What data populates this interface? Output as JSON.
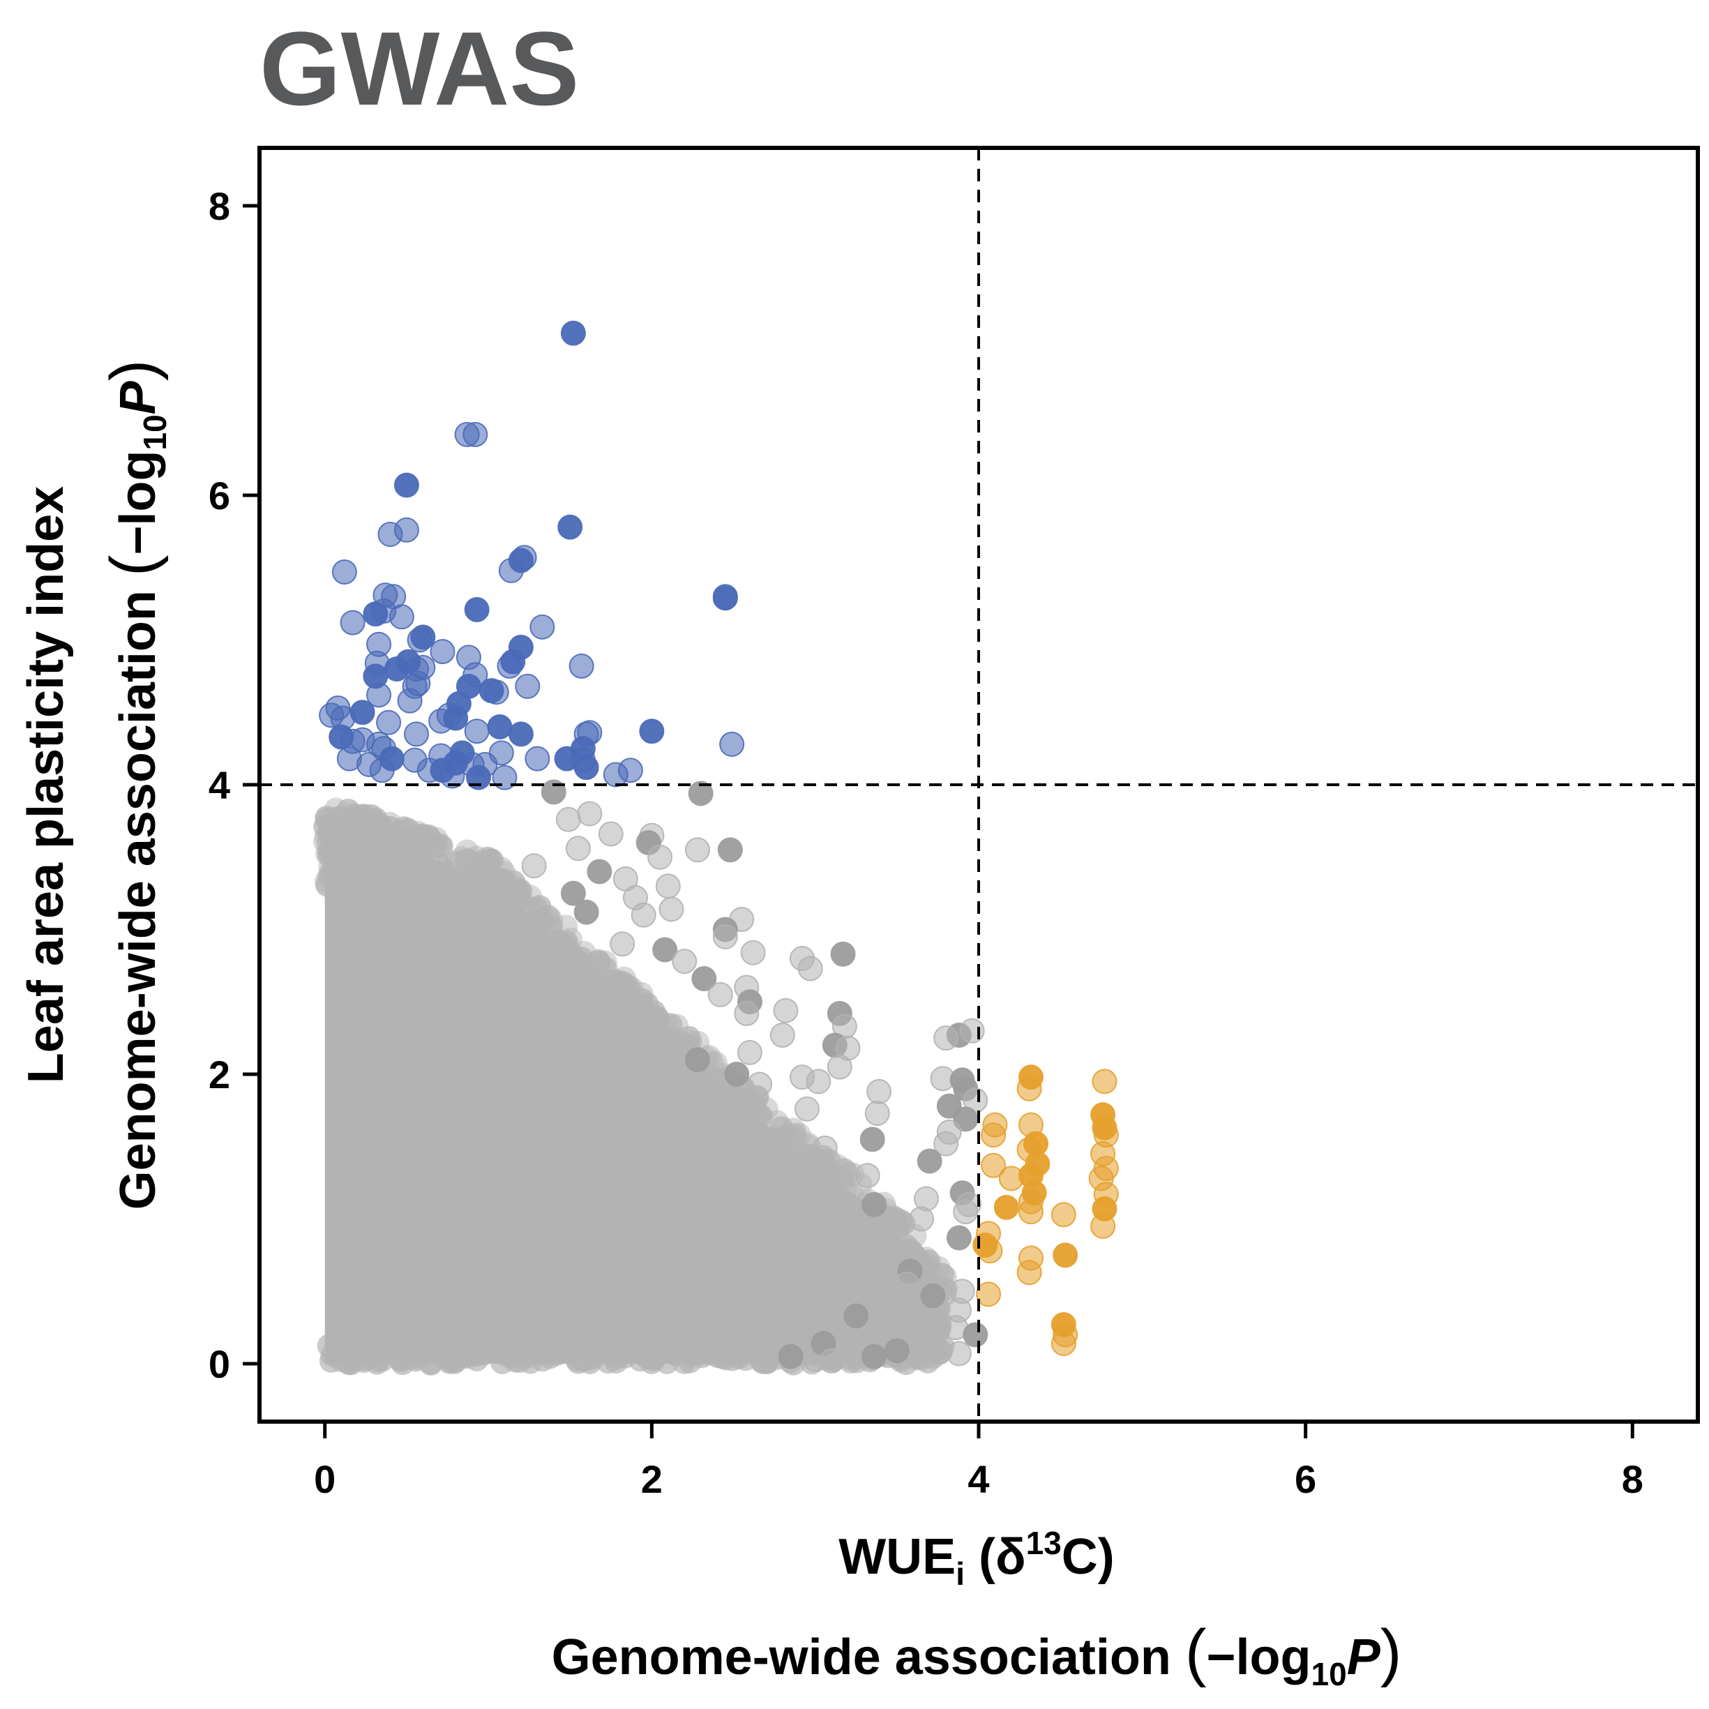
{
  "chart_data": {
    "type": "scatter",
    "title": "GWAS",
    "xlabel": {
      "line1_main": "WUE",
      "line1_sub": "i",
      "line1_open": " (δ",
      "line1_sup": "13",
      "line1_close": "C)",
      "line2_main": "Genome-wide association ",
      "line2_log": "−log",
      "line2_sub": "10",
      "line2_P": "P"
    },
    "ylabel": {
      "line1": "Leaf area plasticity index",
      "line2_main": "Genome-wide association ",
      "line2_log": "−log",
      "line2_sub": "10",
      "line2_P": "P"
    },
    "xlim": [
      -0.4,
      8.4
    ],
    "ylim": [
      -0.4,
      8.4
    ],
    "xticks": [
      "0",
      "2",
      "4",
      "6",
      "8"
    ],
    "yticks": [
      "0",
      "2",
      "4",
      "6",
      "8"
    ],
    "thresholds": {
      "x": 4,
      "y": 4
    },
    "colors": {
      "title": "#58595b",
      "gray": "#b3b3b3",
      "gray_dark": "#9c9c9c",
      "blue": "#4a6ab8",
      "orange": "#e6a02c"
    },
    "series": [
      {
        "group": "leaf-area-significant",
        "color": "#4a6ab8",
        "points": [
          [
            1.52,
            7.12
          ],
          [
            0.87,
            6.42
          ],
          [
            0.92,
            6.42
          ],
          [
            0.5,
            6.07
          ],
          [
            0.4,
            5.73
          ],
          [
            0.5,
            5.76
          ],
          [
            1.5,
            5.78
          ],
          [
            0.12,
            5.47
          ],
          [
            1.22,
            5.57
          ],
          [
            1.2,
            5.55
          ],
          [
            1.14,
            5.48
          ],
          [
            2.45,
            5.3
          ],
          [
            2.45,
            5.29
          ],
          [
            0.37,
            5.31
          ],
          [
            0.42,
            5.3
          ],
          [
            0.31,
            5.18
          ],
          [
            0.36,
            5.2
          ],
          [
            0.47,
            5.16
          ],
          [
            0.93,
            5.21
          ],
          [
            0.17,
            5.12
          ],
          [
            1.33,
            5.09
          ],
          [
            0.6,
            5.02
          ],
          [
            0.33,
            4.97
          ],
          [
            0.58,
            5.0
          ],
          [
            1.2,
            4.95
          ],
          [
            0.88,
            4.88
          ],
          [
            0.72,
            4.92
          ],
          [
            0.51,
            4.85
          ],
          [
            0.32,
            4.84
          ],
          [
            1.57,
            4.82
          ],
          [
            0.44,
            4.8
          ],
          [
            0.56,
            4.8
          ],
          [
            0.6,
            4.81
          ],
          [
            1.15,
            4.85
          ],
          [
            1.13,
            4.82
          ],
          [
            0.92,
            4.76
          ],
          [
            0.31,
            4.75
          ],
          [
            0.55,
            4.68
          ],
          [
            0.57,
            4.7
          ],
          [
            0.88,
            4.68
          ],
          [
            1.24,
            4.68
          ],
          [
            1.05,
            4.64
          ],
          [
            1.02,
            4.65
          ],
          [
            0.33,
            4.62
          ],
          [
            0.52,
            4.58
          ],
          [
            0.82,
            4.56
          ],
          [
            0.08,
            4.53
          ],
          [
            0.04,
            4.48
          ],
          [
            0.23,
            4.5
          ],
          [
            0.11,
            4.46
          ],
          [
            0.76,
            4.48
          ],
          [
            0.8,
            4.46
          ],
          [
            0.71,
            4.44
          ],
          [
            0.39,
            4.43
          ],
          [
            1.07,
            4.4
          ],
          [
            0.93,
            4.37
          ],
          [
            0.56,
            4.35
          ],
          [
            2.0,
            4.37
          ],
          [
            1.62,
            4.36
          ],
          [
            1.6,
            4.35
          ],
          [
            0.1,
            4.33
          ],
          [
            0.17,
            4.3
          ],
          [
            0.23,
            4.31
          ],
          [
            1.2,
            4.35
          ],
          [
            0.33,
            4.28
          ],
          [
            0.36,
            4.25
          ],
          [
            1.58,
            4.25
          ],
          [
            2.49,
            4.28
          ],
          [
            1.08,
            4.22
          ],
          [
            0.84,
            4.22
          ],
          [
            0.71,
            4.2
          ],
          [
            0.15,
            4.18
          ],
          [
            0.41,
            4.18
          ],
          [
            0.55,
            4.17
          ],
          [
            1.3,
            4.18
          ],
          [
            1.48,
            4.18
          ],
          [
            1.58,
            4.17
          ],
          [
            0.27,
            4.14
          ],
          [
            0.8,
            4.15
          ],
          [
            0.9,
            4.14
          ],
          [
            0.98,
            4.14
          ],
          [
            1.6,
            4.12
          ],
          [
            0.35,
            4.1
          ],
          [
            0.64,
            4.1
          ],
          [
            0.72,
            4.1
          ],
          [
            1.87,
            4.1
          ],
          [
            1.78,
            4.07
          ],
          [
            0.94,
            4.05
          ],
          [
            1.1,
            4.05
          ],
          [
            0.78,
            4.06
          ]
        ]
      },
      {
        "group": "wue-significant",
        "color": "#e6a02c",
        "points": [
          [
            4.32,
            1.98
          ],
          [
            4.77,
            1.95
          ],
          [
            4.31,
            1.9
          ],
          [
            4.76,
            1.72
          ],
          [
            4.1,
            1.65
          ],
          [
            4.32,
            1.65
          ],
          [
            4.77,
            1.63
          ],
          [
            4.78,
            1.58
          ],
          [
            4.09,
            1.58
          ],
          [
            4.35,
            1.52
          ],
          [
            4.31,
            1.48
          ],
          [
            4.76,
            1.45
          ],
          [
            4.36,
            1.38
          ],
          [
            4.09,
            1.37
          ],
          [
            4.78,
            1.35
          ],
          [
            4.32,
            1.3
          ],
          [
            4.75,
            1.28
          ],
          [
            4.2,
            1.28
          ],
          [
            4.34,
            1.18
          ],
          [
            4.78,
            1.17
          ],
          [
            4.32,
            1.12
          ],
          [
            4.77,
            1.07
          ],
          [
            4.32,
            1.05
          ],
          [
            4.52,
            1.03
          ],
          [
            4.17,
            1.08
          ],
          [
            4.76,
            0.95
          ],
          [
            4.06,
            0.9
          ],
          [
            4.04,
            0.82
          ],
          [
            4.07,
            0.78
          ],
          [
            4.32,
            0.73
          ],
          [
            4.53,
            0.75
          ],
          [
            4.31,
            0.63
          ],
          [
            4.06,
            0.48
          ],
          [
            4.52,
            0.27
          ],
          [
            4.53,
            0.2
          ],
          [
            4.52,
            0.14
          ]
        ]
      },
      {
        "group": "non-significant",
        "color": "#b3b3b3",
        "points": [
          [
            1.4,
            3.95
          ],
          [
            1.62,
            3.8
          ],
          [
            1.49,
            3.76
          ],
          [
            2.3,
            3.94
          ],
          [
            1.75,
            3.66
          ],
          [
            2.0,
            3.65
          ],
          [
            1.98,
            3.6
          ],
          [
            1.55,
            3.56
          ],
          [
            2.28,
            3.55
          ],
          [
            2.48,
            3.55
          ],
          [
            2.05,
            3.5
          ],
          [
            1.28,
            3.44
          ],
          [
            1.68,
            3.4
          ],
          [
            1.84,
            3.35
          ],
          [
            2.1,
            3.3
          ],
          [
            1.52,
            3.25
          ],
          [
            1.9,
            3.22
          ],
          [
            2.12,
            3.14
          ],
          [
            1.6,
            3.12
          ],
          [
            1.95,
            3.1
          ],
          [
            2.55,
            3.07
          ],
          [
            2.45,
            3.0
          ],
          [
            2.45,
            2.95
          ],
          [
            1.82,
            2.9
          ],
          [
            2.08,
            2.86
          ],
          [
            2.62,
            2.84
          ],
          [
            2.92,
            2.8
          ],
          [
            3.17,
            2.83
          ],
          [
            2.2,
            2.78
          ],
          [
            2.97,
            2.73
          ],
          [
            2.32,
            2.66
          ],
          [
            2.58,
            2.6
          ],
          [
            2.42,
            2.55
          ],
          [
            2.6,
            2.5
          ],
          [
            2.82,
            2.44
          ],
          [
            2.58,
            2.42
          ],
          [
            3.15,
            2.42
          ],
          [
            3.18,
            2.33
          ],
          [
            2.8,
            2.27
          ],
          [
            3.88,
            2.27
          ],
          [
            3.96,
            2.3
          ],
          [
            3.8,
            2.25
          ],
          [
            3.12,
            2.2
          ],
          [
            3.2,
            2.18
          ],
          [
            2.6,
            2.15
          ],
          [
            2.28,
            2.1
          ],
          [
            3.15,
            2.05
          ],
          [
            2.02,
            2.02
          ],
          [
            2.52,
            2.0
          ],
          [
            2.92,
            1.98
          ],
          [
            3.78,
            1.97
          ],
          [
            3.9,
            1.96
          ],
          [
            3.02,
            1.95
          ],
          [
            2.66,
            1.93
          ],
          [
            3.92,
            1.9
          ],
          [
            3.39,
            1.88
          ],
          [
            3.98,
            1.82
          ],
          [
            3.82,
            1.78
          ],
          [
            2.95,
            1.76
          ],
          [
            3.38,
            1.73
          ],
          [
            3.92,
            1.69
          ],
          [
            2.42,
            1.65
          ],
          [
            3.82,
            1.6
          ],
          [
            3.35,
            1.55
          ],
          [
            3.8,
            1.52
          ],
          [
            3.06,
            1.49
          ],
          [
            3.7,
            1.4
          ],
          [
            2.9,
            1.35
          ],
          [
            3.32,
            1.3
          ],
          [
            3.9,
            1.18
          ],
          [
            3.68,
            1.14
          ],
          [
            3.94,
            1.1
          ],
          [
            3.36,
            1.1
          ],
          [
            3.92,
            1.05
          ],
          [
            3.65,
            1.0
          ],
          [
            3.88,
            0.87
          ],
          [
            3.24,
            0.84
          ],
          [
            3.62,
            0.72
          ],
          [
            3.58,
            0.64
          ],
          [
            3.56,
            0.55
          ],
          [
            3.9,
            0.5
          ],
          [
            3.72,
            0.47
          ],
          [
            3.52,
            0.43
          ],
          [
            3.88,
            0.37
          ],
          [
            3.25,
            0.33
          ],
          [
            3.6,
            0.32
          ],
          [
            3.86,
            0.25
          ],
          [
            3.98,
            0.2
          ],
          [
            3.72,
            0.13
          ],
          [
            3.55,
            0.1
          ],
          [
            3.5,
            0.09
          ],
          [
            3.76,
            0.08
          ],
          [
            3.88,
            0.07
          ],
          [
            3.36,
            0.05
          ],
          [
            3.0,
            0.03
          ],
          [
            2.96,
            0.08
          ],
          [
            3.05,
            0.14
          ],
          [
            2.7,
            0.02
          ],
          [
            3.1,
            0.02
          ],
          [
            2.85,
            0.05
          ]
        ]
      }
    ]
  }
}
